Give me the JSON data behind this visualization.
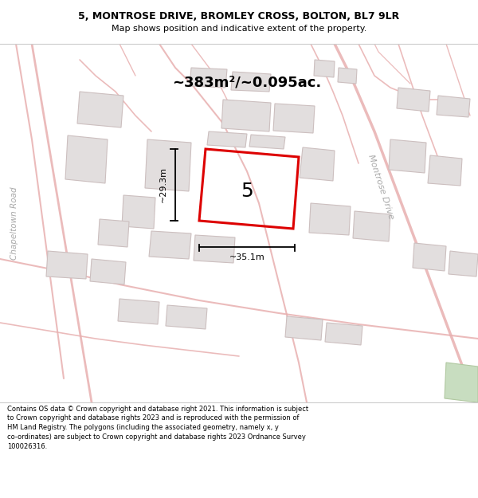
{
  "title_line1": "5, MONTROSE DRIVE, BROMLEY CROSS, BOLTON, BL7 9LR",
  "title_line2": "Map shows position and indicative extent of the property.",
  "footer_text": "Contains OS data © Crown copyright and database right 2021. This information is subject to Crown copyright and database rights 2023 and is reproduced with the permission of HM Land Registry. The polygons (including the associated geometry, namely x, y co-ordinates) are subject to Crown copyright and database rights 2023 Ordnance Survey 100026316.",
  "area_text": "~383m²/~0.095ac.",
  "width_label": "~35.1m",
  "height_label": "~29.3m",
  "property_number": "5",
  "road_label_right": "Montrose Drive",
  "road_label_left": "Chapeltown Road",
  "map_bg": "#f9f7f7",
  "building_fill": "#e2dede",
  "building_edge": "#ccbfbf",
  "road_color": "#e8b0b0",
  "property_color": "#dd0000",
  "green_fill": "#c8ddc0",
  "green_edge": "#b0c8a0"
}
